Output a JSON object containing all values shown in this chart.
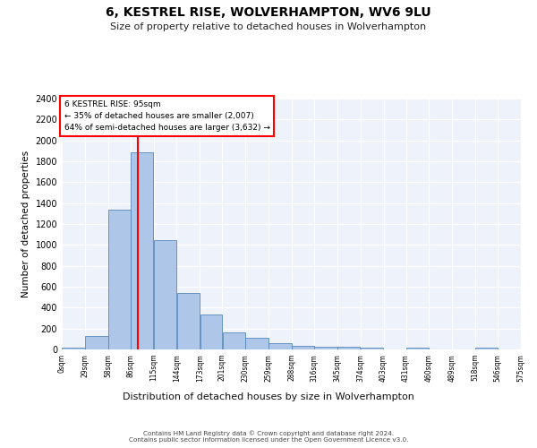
{
  "title": "6, KESTREL RISE, WOLVERHAMPTON, WV6 9LU",
  "subtitle": "Size of property relative to detached houses in Wolverhampton",
  "xlabel": "Distribution of detached houses by size in Wolverhampton",
  "ylabel": "Number of detached properties",
  "bar_color": "#aec6e8",
  "bar_edgecolor": "#5588bb",
  "background_color": "#eef2fa",
  "annotation_text": "6 KESTREL RISE: 95sqm\n← 35% of detached houses are smaller (2,007)\n64% of semi-detached houses are larger (3,632) →",
  "vline_x": 95,
  "bin_edges": [
    0,
    29,
    58,
    86,
    115,
    144,
    173,
    201,
    230,
    259,
    288,
    316,
    345,
    374,
    403,
    431,
    460,
    489,
    518,
    546,
    575
  ],
  "bin_labels": [
    "0sqm",
    "29sqm",
    "58sqm",
    "86sqm",
    "115sqm",
    "144sqm",
    "173sqm",
    "201sqm",
    "230sqm",
    "259sqm",
    "288sqm",
    "316sqm",
    "345sqm",
    "374sqm",
    "403sqm",
    "431sqm",
    "460sqm",
    "489sqm",
    "518sqm",
    "546sqm",
    "575sqm"
  ],
  "bar_heights": [
    15,
    125,
    1340,
    1890,
    1045,
    540,
    335,
    165,
    110,
    62,
    38,
    25,
    22,
    15,
    0,
    18,
    0,
    0,
    18,
    0
  ],
  "ylim": [
    0,
    2400
  ],
  "yticks": [
    0,
    200,
    400,
    600,
    800,
    1000,
    1200,
    1400,
    1600,
    1800,
    2000,
    2200,
    2400
  ],
  "footer_line1": "Contains HM Land Registry data © Crown copyright and database right 2024.",
  "footer_line2": "Contains public sector information licensed under the Open Government Licence v3.0."
}
